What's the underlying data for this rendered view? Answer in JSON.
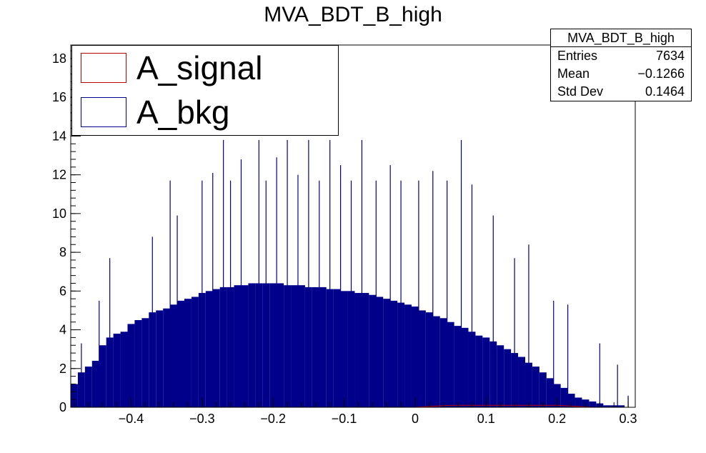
{
  "title": "MVA_BDT_B_high",
  "stats": {
    "name": "MVA_BDT_B_high",
    "rows": [
      {
        "label": "Entries",
        "value": "7634"
      },
      {
        "label": "Mean",
        "value": "−0.1266"
      },
      {
        "label": "Std Dev",
        "value": "0.1464"
      }
    ]
  },
  "legend": [
    {
      "label": "A_signal",
      "color": "#c00000",
      "fill": "none"
    },
    {
      "label": "A_bkg",
      "color": "#00008b",
      "fill": "#00008b"
    }
  ],
  "chart_data": {
    "type": "bar",
    "xlim": [
      -0.485,
      0.31
    ],
    "ylim": [
      0,
      18.7
    ],
    "x_ticks": [
      -0.4,
      -0.3,
      -0.2,
      -0.1,
      0,
      0.1,
      0.2,
      0.3
    ],
    "x_tick_labels": [
      "−0.4",
      "−0.3",
      "−0.2",
      "−0.1",
      "0",
      "0.1",
      "0.2",
      "0.3"
    ],
    "y_ticks": [
      0,
      2,
      4,
      6,
      8,
      10,
      12,
      14,
      16,
      18
    ],
    "y_tick_labels": [
      "0",
      "2",
      "4",
      "6",
      "8",
      "10",
      "12",
      "14",
      "16",
      "18"
    ],
    "grid": false,
    "legend_position": "top-left",
    "series": [
      {
        "name": "A_bkg",
        "color": "#00008b",
        "x": [
          -0.48,
          -0.47,
          -0.46,
          -0.45,
          -0.44,
          -0.43,
          -0.42,
          -0.41,
          -0.4,
          -0.39,
          -0.38,
          -0.37,
          -0.36,
          -0.35,
          -0.34,
          -0.33,
          -0.32,
          -0.31,
          -0.3,
          -0.29,
          -0.28,
          -0.27,
          -0.26,
          -0.25,
          -0.24,
          -0.23,
          -0.22,
          -0.21,
          -0.2,
          -0.19,
          -0.18,
          -0.17,
          -0.16,
          -0.15,
          -0.14,
          -0.13,
          -0.12,
          -0.11,
          -0.1,
          -0.09,
          -0.08,
          -0.07,
          -0.06,
          -0.05,
          -0.04,
          -0.03,
          -0.02,
          -0.01,
          0,
          0.01,
          0.02,
          0.03,
          0.04,
          0.05,
          0.06,
          0.07,
          0.08,
          0.09,
          0.1,
          0.11,
          0.12,
          0.13,
          0.14,
          0.15,
          0.16,
          0.17,
          0.18,
          0.19,
          0.2,
          0.21,
          0.22,
          0.23,
          0.24,
          0.25,
          0.26,
          0.27,
          0.28,
          0.29,
          0.3
        ],
        "values": [
          1.2,
          1.8,
          2.1,
          2.4,
          3.2,
          3.6,
          3.8,
          3.9,
          4.3,
          4.5,
          4.6,
          4.9,
          5.0,
          5.1,
          5.3,
          5.5,
          5.6,
          5.7,
          5.9,
          6.0,
          6.1,
          6.2,
          6.2,
          6.3,
          6.3,
          6.4,
          6.4,
          6.4,
          6.4,
          6.4,
          6.3,
          6.3,
          6.3,
          6.2,
          6.2,
          6.2,
          6.1,
          6.1,
          6.0,
          6.0,
          5.9,
          5.9,
          5.8,
          5.7,
          5.6,
          5.5,
          5.4,
          5.3,
          5.2,
          5.0,
          4.9,
          4.7,
          4.6,
          4.4,
          4.2,
          4.1,
          3.9,
          3.7,
          3.6,
          3.4,
          3.2,
          3.0,
          2.8,
          2.6,
          2.3,
          2.1,
          1.8,
          1.5,
          1.2,
          1.0,
          0.7,
          0.5,
          0.4,
          0.3,
          0.2,
          0.1,
          0.1,
          0.1,
          0.0
        ],
        "spikes": [
          {
            "x": -0.47,
            "value": 3.3
          },
          {
            "x": -0.445,
            "value": 5.5
          },
          {
            "x": -0.43,
            "value": 7.7
          },
          {
            "x": -0.37,
            "value": 8.8
          },
          {
            "x": -0.345,
            "value": 11.7
          },
          {
            "x": -0.335,
            "value": 9.9
          },
          {
            "x": -0.3,
            "value": 11.7
          },
          {
            "x": -0.285,
            "value": 12.1
          },
          {
            "x": -0.27,
            "value": 13.8
          },
          {
            "x": -0.26,
            "value": 11.7
          },
          {
            "x": -0.245,
            "value": 12.8
          },
          {
            "x": -0.22,
            "value": 13.8
          },
          {
            "x": -0.21,
            "value": 11.7
          },
          {
            "x": -0.195,
            "value": 12.9
          },
          {
            "x": -0.18,
            "value": 13.8
          },
          {
            "x": -0.165,
            "value": 12.0
          },
          {
            "x": -0.15,
            "value": 13.8
          },
          {
            "x": -0.135,
            "value": 11.7
          },
          {
            "x": -0.12,
            "value": 13.8
          },
          {
            "x": -0.105,
            "value": 12.5
          },
          {
            "x": -0.09,
            "value": 11.7
          },
          {
            "x": -0.075,
            "value": 13.8
          },
          {
            "x": -0.055,
            "value": 11.7
          },
          {
            "x": -0.035,
            "value": 12.5
          },
          {
            "x": -0.02,
            "value": 11.7
          },
          {
            "x": 0.005,
            "value": 11.7
          },
          {
            "x": 0.025,
            "value": 12.2
          },
          {
            "x": 0.045,
            "value": 11.7
          },
          {
            "x": 0.065,
            "value": 13.8
          },
          {
            "x": 0.08,
            "value": 11.5
          },
          {
            "x": 0.11,
            "value": 9.9
          },
          {
            "x": 0.14,
            "value": 7.7
          },
          {
            "x": 0.16,
            "value": 8.4
          },
          {
            "x": 0.195,
            "value": 5.5
          },
          {
            "x": 0.215,
            "value": 5.3
          },
          {
            "x": 0.26,
            "value": 3.3
          },
          {
            "x": 0.285,
            "value": 2.2
          },
          {
            "x": 0.3,
            "value": 0.6
          }
        ]
      },
      {
        "name": "A_signal",
        "color": "#c00000",
        "x": [
          -0.2,
          -0.1,
          0,
          0.05,
          0.1,
          0.15,
          0.2,
          0.25
        ],
        "values": [
          0.0,
          0.0,
          0.0,
          0.1,
          0.1,
          0.1,
          0.1,
          0.0
        ]
      }
    ]
  }
}
